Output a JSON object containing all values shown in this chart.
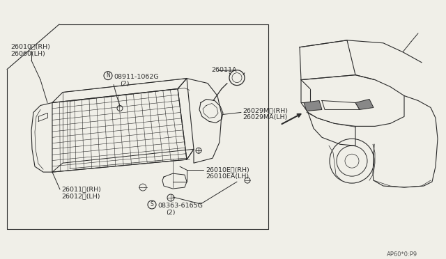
{
  "bg_color": "#f0efe8",
  "line_color": "#2a2a2a",
  "labels": {
    "top_left_1": "26010（RH）",
    "top_left_2": "26060（LH）",
    "nut_label_1": "08911-1062G",
    "nut_label_2": "(2)",
    "bulb_cap": "26011A",
    "right_label_1": "26029M （RH）",
    "right_label_2": "26029MA（LH）",
    "bottom_left_1": "26011（RH）",
    "bottom_left_2": "26012（LH）",
    "bottom_right_label_1": "26010E （RH）",
    "bottom_right_label_2": "26010EA（LH）",
    "screw_label_1": "08363-6165G",
    "screw_label_2": "(2)",
    "part_num": "AP60*0:P9"
  }
}
